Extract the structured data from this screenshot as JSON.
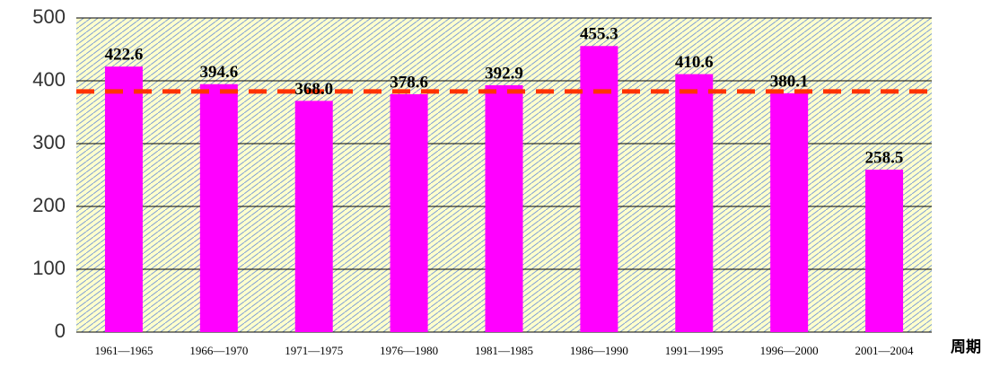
{
  "chart_data": {
    "type": "bar",
    "x_label": "周期",
    "categories": [
      "1961—1965",
      "1966—1970",
      "1971—1975",
      "1976—1980",
      "1981—1985",
      "1986—1990",
      "1991—1995",
      "1996—2000",
      "2001—2004"
    ],
    "values": [
      422.6,
      394.6,
      368.0,
      378.6,
      392.9,
      455.3,
      410.6,
      380.1,
      258.5
    ],
    "value_labels": [
      "422.6",
      "394.6",
      "368.0",
      "378.6",
      "392.9",
      "455.3",
      "410.6",
      "380.1",
      "258.5"
    ],
    "color": "#ff00ff",
    "reference_line": 383,
    "reference_color": "#ff3300",
    "ylim": [
      0,
      500
    ],
    "yticks": [
      0,
      100,
      200,
      300,
      400,
      500
    ],
    "grid": true
  }
}
